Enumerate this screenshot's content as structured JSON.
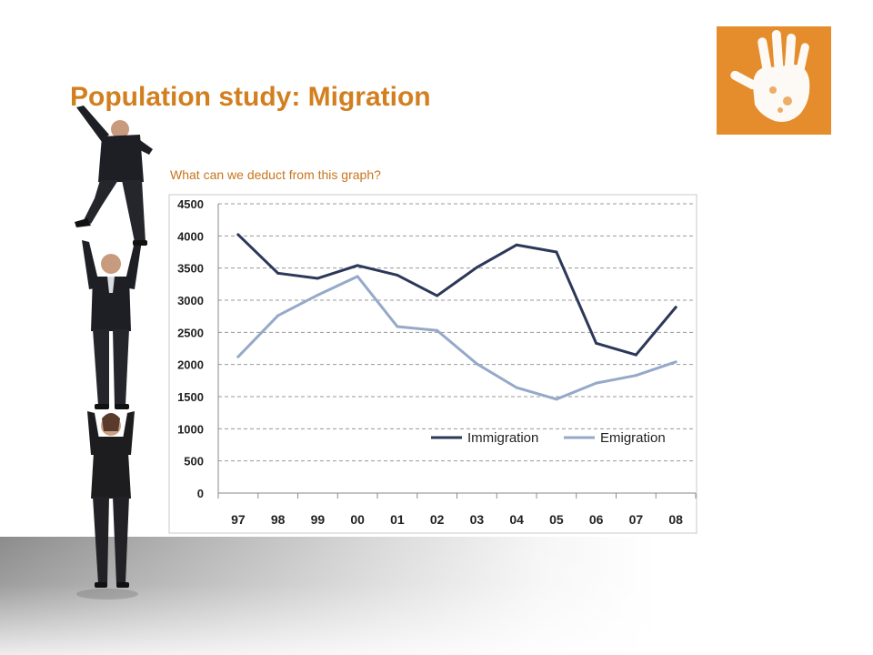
{
  "slide": {
    "title": "Population study: Migration",
    "subtitle": "What can we deduct from this graph?",
    "accent_color": "#d27f1f",
    "logo": {
      "icon": "handprint-icon",
      "color": "#e58d2d"
    },
    "illustration": {
      "icon": "stacked-business-people-icon"
    }
  },
  "chart_data": {
    "type": "line",
    "title": "",
    "xlabel": "",
    "ylabel": "",
    "categories": [
      "97",
      "98",
      "99",
      "00",
      "01",
      "02",
      "03",
      "04",
      "05",
      "06",
      "07",
      "08"
    ],
    "ylim": [
      0,
      4500
    ],
    "yticks": [
      0,
      500,
      1000,
      1500,
      2000,
      2500,
      3000,
      3500,
      4000,
      4500
    ],
    "grid": "horizontal-dashed",
    "legend": "inside-bottom-right",
    "series": [
      {
        "name": "Immigration",
        "color": "#2c3858",
        "values": [
          4020,
          3420,
          3340,
          3540,
          3390,
          3070,
          3510,
          3860,
          3750,
          2330,
          2150,
          2890
        ]
      },
      {
        "name": "Emigration",
        "color": "#95a9c8",
        "values": [
          2120,
          2760,
          3080,
          3370,
          2590,
          2530,
          2010,
          1640,
          1460,
          1710,
          1830,
          2040
        ]
      }
    ]
  }
}
